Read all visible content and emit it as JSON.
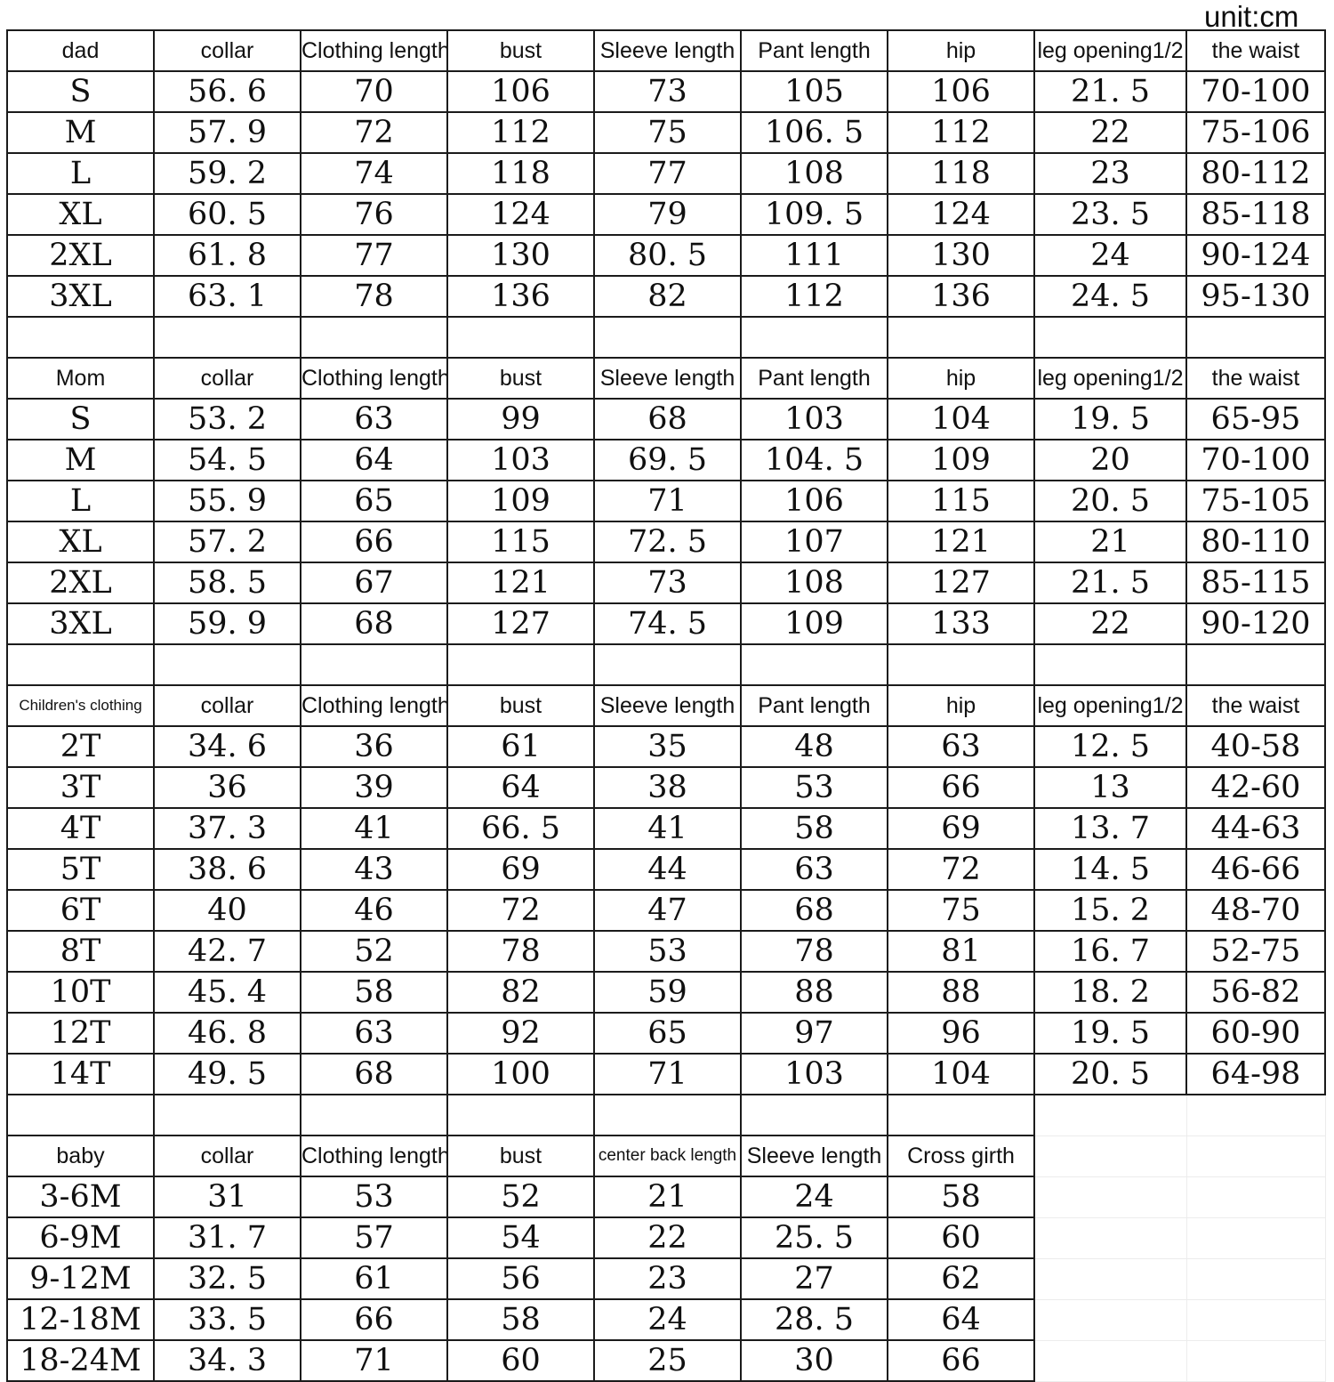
{
  "unit_label": "unit:cm",
  "colors": {
    "background": "#ffffff",
    "table_border": "#1b1b1b",
    "text": "#101010",
    "faint_grid": "#ececec"
  },
  "sections": [
    {
      "id": "dad",
      "label": "dad",
      "headers": [
        "collar",
        "Clothing length",
        "bust",
        "Sleeve length",
        "Pant length",
        "hip",
        "leg opening1/2",
        "the waist"
      ],
      "rows": [
        [
          "S",
          "56. 6",
          "70",
          "106",
          "73",
          "105",
          "106",
          "21. 5",
          "70-100"
        ],
        [
          "M",
          "57. 9",
          "72",
          "112",
          "75",
          "106. 5",
          "112",
          "22",
          "75-106"
        ],
        [
          "L",
          "59. 2",
          "74",
          "118",
          "77",
          "108",
          "118",
          "23",
          "80-112"
        ],
        [
          "XL",
          "60. 5",
          "76",
          "124",
          "79",
          "109. 5",
          "124",
          "23. 5",
          "85-118"
        ],
        [
          "2XL",
          "61. 8",
          "77",
          "130",
          "80. 5",
          "111",
          "130",
          "24",
          "90-124"
        ],
        [
          "3XL",
          "63. 1",
          "78",
          "136",
          "82",
          "112",
          "136",
          "24. 5",
          "95-130"
        ]
      ]
    },
    {
      "id": "mom",
      "label": "Mom",
      "headers": [
        "collar",
        "Clothing length",
        "bust",
        "Sleeve length",
        "Pant length",
        "hip",
        "leg opening1/2",
        "the waist"
      ],
      "rows": [
        [
          "S",
          "53. 2",
          "63",
          "99",
          "68",
          "103",
          "104",
          "19. 5",
          "65-95"
        ],
        [
          "M",
          "54. 5",
          "64",
          "103",
          "69. 5",
          "104. 5",
          "109",
          "20",
          "70-100"
        ],
        [
          "L",
          "55. 9",
          "65",
          "109",
          "71",
          "106",
          "115",
          "20. 5",
          "75-105"
        ],
        [
          "XL",
          "57. 2",
          "66",
          "115",
          "72. 5",
          "107",
          "121",
          "21",
          "80-110"
        ],
        [
          "2XL",
          "58. 5",
          "67",
          "121",
          "73",
          "108",
          "127",
          "21. 5",
          "85-115"
        ],
        [
          "3XL",
          "59. 9",
          "68",
          "127",
          "74. 5",
          "109",
          "133",
          "22",
          "90-120"
        ]
      ]
    },
    {
      "id": "children",
      "label": "Children's clothing",
      "headers": [
        "collar",
        "Clothing length",
        "bust",
        "Sleeve length",
        "Pant length",
        "hip",
        "leg opening1/2",
        "the waist"
      ],
      "rows": [
        [
          "2T",
          "34. 6",
          "36",
          "61",
          "35",
          "48",
          "63",
          "12. 5",
          "40-58"
        ],
        [
          "3T",
          "36",
          "39",
          "64",
          "38",
          "53",
          "66",
          "13",
          "42-60"
        ],
        [
          "4T",
          "37. 3",
          "41",
          "66. 5",
          "41",
          "58",
          "69",
          "13. 7",
          "44-63"
        ],
        [
          "5T",
          "38. 6",
          "43",
          "69",
          "44",
          "63",
          "72",
          "14. 5",
          "46-66"
        ],
        [
          "6T",
          "40",
          "46",
          "72",
          "47",
          "68",
          "75",
          "15. 2",
          "48-70"
        ],
        [
          "8T",
          "42. 7",
          "52",
          "78",
          "53",
          "78",
          "81",
          "16. 7",
          "52-75"
        ],
        [
          "10T",
          "45. 4",
          "58",
          "82",
          "59",
          "88",
          "88",
          "18. 2",
          "56-82"
        ],
        [
          "12T",
          "46. 8",
          "63",
          "92",
          "65",
          "97",
          "96",
          "19. 5",
          "60-90"
        ],
        [
          "14T",
          "49. 5",
          "68",
          "100",
          "71",
          "103",
          "104",
          "20. 5",
          "64-98"
        ]
      ]
    },
    {
      "id": "baby",
      "label": "baby",
      "headers": [
        "collar",
        "Clothing length",
        "bust",
        "center back length",
        "Sleeve length",
        "Cross girth"
      ],
      "rows": [
        [
          "3-6M",
          "31",
          "53",
          "52",
          "21",
          "24",
          "58"
        ],
        [
          "6-9M",
          "31. 7",
          "57",
          "54",
          "22",
          "25. 5",
          "60"
        ],
        [
          "9-12M",
          "32. 5",
          "61",
          "56",
          "23",
          "27",
          "62"
        ],
        [
          "12-18M",
          "33. 5",
          "66",
          "58",
          "24",
          "28. 5",
          "64"
        ],
        [
          "18-24M",
          "34. 3",
          "71",
          "60",
          "25",
          "30",
          "66"
        ]
      ]
    }
  ]
}
